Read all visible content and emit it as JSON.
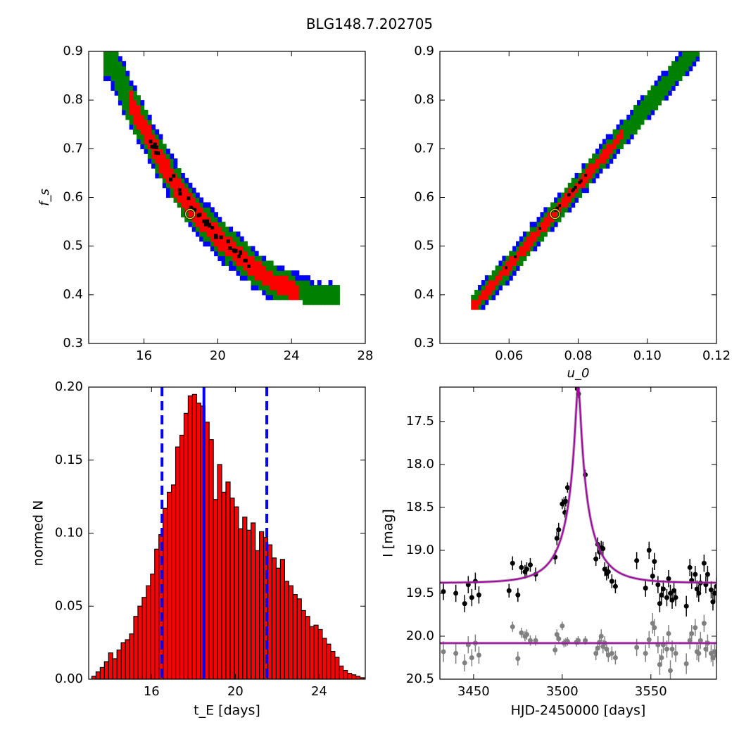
{
  "figure": {
    "title": "BLG148.7.202705"
  },
  "chart_data": [
    {
      "id": "tE-fs",
      "type": "heatmap",
      "xlabel": "",
      "ylabel": "f_s",
      "xlim": [
        13,
        28
      ],
      "ylim": [
        0.3,
        0.9
      ],
      "xticks": [
        16,
        20,
        24,
        28
      ],
      "yticks": [
        0.3,
        0.4,
        0.5,
        0.6,
        0.7,
        0.8,
        0.9
      ],
      "levels": [
        {
          "name": "3sigma",
          "color": "#0000ff"
        },
        {
          "name": "2sigma",
          "color": "#008000"
        },
        {
          "name": "1sigma",
          "color": "#ff0000"
        },
        {
          "name": "best",
          "color": "#000000"
        }
      ],
      "ridge": [
        [
          14.0,
          0.89
        ],
        [
          15.0,
          0.8
        ],
        [
          16.0,
          0.73
        ],
        [
          17.0,
          0.66
        ],
        [
          18.0,
          0.6
        ],
        [
          19.0,
          0.55
        ],
        [
          20.0,
          0.51
        ],
        [
          21.0,
          0.48
        ],
        [
          22.0,
          0.445
        ],
        [
          23.0,
          0.42
        ],
        [
          24.0,
          0.405
        ],
        [
          25.0,
          0.39
        ],
        [
          26.0,
          0.385
        ]
      ],
      "best_fit": {
        "x": 18.5,
        "y": 0.566
      }
    },
    {
      "id": "u0-fs",
      "type": "heatmap",
      "xlabel": "u_0",
      "ylabel": "",
      "xlim": [
        0.04,
        0.12
      ],
      "ylim": [
        0.3,
        0.9
      ],
      "xticks": [
        0.06,
        0.08,
        0.1,
        0.12
      ],
      "yticks": [
        0.3,
        0.4,
        0.5,
        0.6,
        0.7,
        0.8,
        0.9
      ],
      "levels": [
        {
          "name": "3sigma",
          "color": "#0000ff"
        },
        {
          "name": "2sigma",
          "color": "#008000"
        },
        {
          "name": "1sigma",
          "color": "#ff0000"
        },
        {
          "name": "best",
          "color": "#000000"
        }
      ],
      "ridge": [
        [
          0.051,
          0.385
        ],
        [
          0.113,
          0.895
        ]
      ],
      "best_fit": {
        "x": 0.0733,
        "y": 0.566
      }
    },
    {
      "id": "tE-hist",
      "type": "bar",
      "xlabel": "t_E [days]",
      "ylabel": "normed N",
      "xlim": [
        13,
        26.2
      ],
      "ylim": [
        0.0,
        0.2
      ],
      "xticks": [
        16,
        20,
        24
      ],
      "yticks": [
        0.0,
        0.05,
        0.1,
        0.15,
        0.2
      ],
      "bin_start": 13.15,
      "bin_width": 0.2,
      "values": [
        0.002,
        0.005,
        0.008,
        0.012,
        0.018,
        0.014,
        0.02,
        0.025,
        0.027,
        0.031,
        0.043,
        0.05,
        0.056,
        0.064,
        0.072,
        0.089,
        0.099,
        0.117,
        0.128,
        0.133,
        0.159,
        0.167,
        0.182,
        0.194,
        0.195,
        0.189,
        0.187,
        0.176,
        0.164,
        0.123,
        0.147,
        0.128,
        0.135,
        0.124,
        0.118,
        0.103,
        0.111,
        0.102,
        0.107,
        0.088,
        0.101,
        0.097,
        0.092,
        0.083,
        0.076,
        0.082,
        0.067,
        0.064,
        0.058,
        0.055,
        0.047,
        0.043,
        0.036,
        0.037,
        0.034,
        0.028,
        0.024,
        0.019,
        0.015,
        0.009,
        0.006,
        0.004,
        0.003,
        0.002,
        0.001,
        0.0
      ],
      "bar_color": "#ff0000",
      "vlines": [
        {
          "x": 18.5,
          "style": "solid",
          "color": "#0000ff"
        },
        {
          "x": 16.5,
          "style": "dashed",
          "color": "#0000ff"
        },
        {
          "x": 21.5,
          "style": "dashed",
          "color": "#0000ff"
        }
      ]
    },
    {
      "id": "lightcurve",
      "type": "scatter",
      "xlabel": "HJD-2450000 [days]",
      "ylabel": "I [mag]",
      "xlim": [
        3431,
        3587
      ],
      "ylim": [
        20.5,
        17.1
      ],
      "xticks": [
        3450,
        3500,
        3550
      ],
      "yticks": [
        17.5,
        18.0,
        18.5,
        19.0,
        19.5,
        20.0,
        20.5
      ],
      "model": {
        "t0": 3509.0,
        "tE": 18.5,
        "u0": 0.0733,
        "fs": 0.566,
        "base": 19.38,
        "color": "#aa00aa"
      },
      "secondary_baseline": {
        "value": 20.08,
        "color": "#aa00aa"
      },
      "series": [
        {
          "color": "#000000",
          "points": [
            [
              3433,
              19.48,
              0.1
            ],
            [
              3440,
              19.5,
              0.1
            ],
            [
              3445,
              19.62,
              0.1
            ],
            [
              3447,
              19.4,
              0.1
            ],
            [
              3449,
              19.55,
              0.1
            ],
            [
              3451,
              19.36,
              0.1
            ],
            [
              3453,
              19.52,
              0.1
            ],
            [
              3470,
              19.47,
              0.08
            ],
            [
              3472,
              19.15,
              0.08
            ],
            [
              3475,
              19.52,
              0.08
            ],
            [
              3477,
              19.2,
              0.08
            ],
            [
              3479,
              19.25,
              0.08
            ],
            [
              3480,
              19.22,
              0.08
            ],
            [
              3482,
              19.17,
              0.08
            ],
            [
              3485,
              19.28,
              0.08
            ],
            [
              3496,
              19.08,
              0.08
            ],
            [
              3497,
              18.86,
              0.08
            ],
            [
              3498,
              18.76,
              0.08
            ],
            [
              3500,
              18.46,
              0.06
            ],
            [
              3501,
              18.44,
              0.06
            ],
            [
              3501.5,
              18.56,
              0.06
            ],
            [
              3502,
              18.43,
              0.06
            ],
            [
              3503,
              18.27,
              0.06
            ],
            [
              3508.5,
              17.12,
              0.05
            ],
            [
              3509.2,
              17.18,
              0.05
            ],
            [
              3513,
              18.12,
              0.06
            ],
            [
              3519,
              19.1,
              0.08
            ],
            [
              3520,
              18.93,
              0.08
            ],
            [
              3521,
              19.02,
              0.08
            ],
            [
              3522,
              18.97,
              0.08
            ],
            [
              3523,
              18.98,
              0.08
            ],
            [
              3524,
              19.22,
              0.08
            ],
            [
              3525,
              19.27,
              0.08
            ],
            [
              3526,
              19.25,
              0.08
            ],
            [
              3528,
              19.36,
              0.08
            ],
            [
              3530,
              19.42,
              0.08
            ],
            [
              3542,
              19.12,
              0.1
            ],
            [
              3547,
              19.44,
              0.1
            ],
            [
              3549,
              19.0,
              0.1
            ],
            [
              3551,
              19.3,
              0.1
            ],
            [
              3552,
              19.13,
              0.1
            ],
            [
              3554,
              19.4,
              0.1
            ],
            [
              3555,
              19.62,
              0.1
            ],
            [
              3556,
              19.52,
              0.1
            ],
            [
              3557,
              19.45,
              0.1
            ],
            [
              3559,
              19.55,
              0.1
            ],
            [
              3560,
              19.33,
              0.1
            ],
            [
              3561,
              19.5,
              0.1
            ],
            [
              3562,
              19.58,
              0.1
            ],
            [
              3563,
              19.47,
              0.1
            ],
            [
              3564,
              19.55,
              0.1
            ],
            [
              3570,
              19.65,
              0.12
            ],
            [
              3572,
              19.2,
              0.1
            ],
            [
              3573,
              19.35,
              0.1
            ],
            [
              3575,
              19.28,
              0.1
            ],
            [
              3576,
              19.45,
              0.1
            ],
            [
              3577,
              19.5,
              0.1
            ],
            [
              3578,
              19.38,
              0.1
            ],
            [
              3580,
              19.15,
              0.1
            ],
            [
              3581,
              19.4,
              0.1
            ],
            [
              3582,
              19.28,
              0.1
            ],
            [
              3584,
              19.46,
              0.1
            ],
            [
              3585,
              19.6,
              0.1
            ],
            [
              3586,
              19.5,
              0.1
            ],
            [
              3587,
              19.42,
              0.1
            ]
          ]
        },
        {
          "color": "#808080",
          "points": [
            [
              3433,
              20.18,
              0.12
            ],
            [
              3440,
              20.2,
              0.12
            ],
            [
              3445,
              20.31,
              0.1
            ],
            [
              3447,
              20.1,
              0.1
            ],
            [
              3449,
              20.25,
              0.1
            ],
            [
              3451,
              20.08,
              0.1
            ],
            [
              3453,
              20.22,
              0.1
            ],
            [
              3472,
              19.89,
              0.06
            ],
            [
              3475,
              20.26,
              0.08
            ],
            [
              3477,
              19.96,
              0.06
            ],
            [
              3479,
              20.0,
              0.06
            ],
            [
              3480,
              19.98,
              0.06
            ],
            [
              3482,
              20.05,
              0.06
            ],
            [
              3485,
              20.05,
              0.06
            ],
            [
              3496,
              20.16,
              0.06
            ],
            [
              3497,
              19.98,
              0.06
            ],
            [
              3498,
              20.03,
              0.06
            ],
            [
              3500,
              19.88,
              0.05
            ],
            [
              3501,
              20.08,
              0.05
            ],
            [
              3502,
              20.07,
              0.05
            ],
            [
              3503,
              20.06,
              0.05
            ],
            [
              3508,
              20.07,
              0.05
            ],
            [
              3509,
              20.05,
              0.05
            ],
            [
              3513,
              20.05,
              0.05
            ],
            [
              3519,
              20.2,
              0.08
            ],
            [
              3520,
              20.14,
              0.08
            ],
            [
              3521,
              20.07,
              0.08
            ],
            [
              3522,
              20.0,
              0.08
            ],
            [
              3523,
              20.12,
              0.08
            ],
            [
              3524,
              20.08,
              0.08
            ],
            [
              3525,
              20.15,
              0.08
            ],
            [
              3526,
              20.22,
              0.08
            ],
            [
              3528,
              20.2,
              0.08
            ],
            [
              3530,
              20.25,
              0.08
            ],
            [
              3542,
              20.13,
              0.1
            ],
            [
              3547,
              20.2,
              0.1
            ],
            [
              3549,
              20.04,
              0.1
            ],
            [
              3551,
              19.85,
              0.12
            ],
            [
              3552,
              19.9,
              0.1
            ],
            [
              3554,
              20.1,
              0.1
            ],
            [
              3555,
              20.33,
              0.12
            ],
            [
              3556,
              20.25,
              0.1
            ],
            [
              3557,
              20.1,
              0.1
            ],
            [
              3559,
              20.15,
              0.1
            ],
            [
              3560,
              19.97,
              0.1
            ],
            [
              3561,
              20.4,
              0.12
            ],
            [
              3562,
              20.15,
              0.1
            ],
            [
              3564,
              20.2,
              0.1
            ],
            [
              3570,
              20.32,
              0.12
            ],
            [
              3572,
              20.05,
              0.1
            ],
            [
              3573,
              19.97,
              0.1
            ],
            [
              3575,
              19.9,
              0.1
            ],
            [
              3576,
              20.18,
              0.1
            ],
            [
              3577,
              20.2,
              0.1
            ],
            [
              3578,
              20.05,
              0.1
            ],
            [
              3580,
              19.85,
              0.1
            ],
            [
              3581,
              20.15,
              0.1
            ],
            [
              3582,
              20.08,
              0.1
            ],
            [
              3584,
              20.2,
              0.1
            ],
            [
              3585,
              20.25,
              0.1
            ],
            [
              3586,
              20.18,
              0.1
            ],
            [
              3587,
              20.22,
              0.1
            ]
          ]
        }
      ]
    }
  ]
}
